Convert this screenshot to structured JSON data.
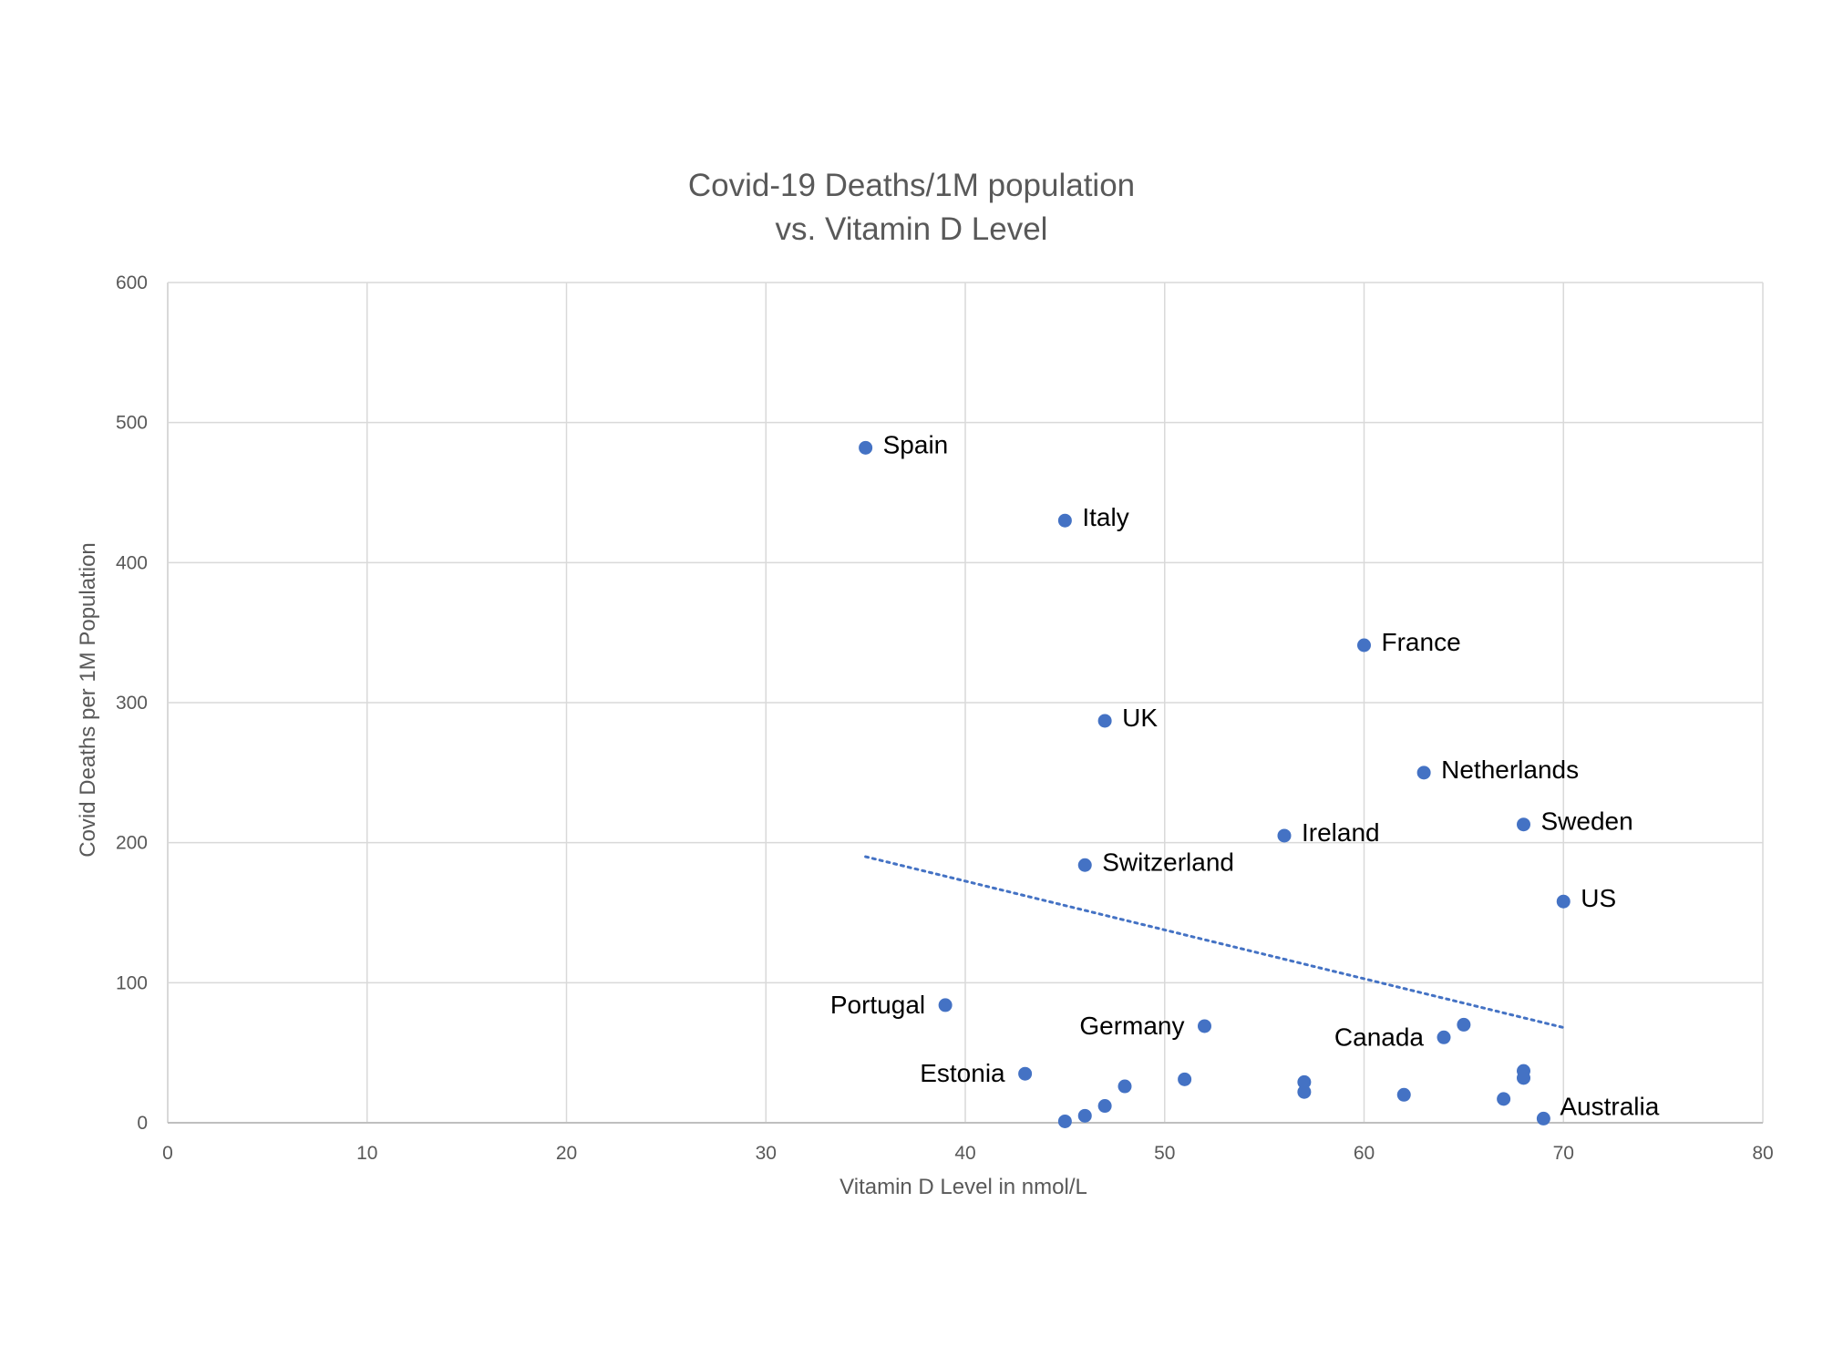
{
  "chart_data": {
    "type": "scatter",
    "title": [
      "Covid-19 Deaths/1M population",
      "vs. Vitamin D Level"
    ],
    "xlabel": "Vitamin D Level in nmol/L",
    "ylabel": "Covid Deaths per 1M Population",
    "xlim": [
      0,
      80
    ],
    "ylim": [
      0,
      600
    ],
    "xticks": [
      0,
      10,
      20,
      30,
      40,
      50,
      60,
      70,
      80
    ],
    "yticks": [
      0,
      100,
      200,
      300,
      400,
      500,
      600
    ],
    "grid": true,
    "marker_color": "#4472C4",
    "trendline": {
      "style": "dotted",
      "color": "#4472C4",
      "x": [
        35,
        70
      ],
      "y": [
        190,
        68
      ]
    },
    "points": [
      {
        "x": 35,
        "y": 482,
        "label": "Spain"
      },
      {
        "x": 45,
        "y": 430,
        "label": "Italy"
      },
      {
        "x": 60,
        "y": 341,
        "label": "France"
      },
      {
        "x": 47,
        "y": 287,
        "label": "UK"
      },
      {
        "x": 63,
        "y": 250,
        "label": "Netherlands"
      },
      {
        "x": 68,
        "y": 213,
        "label": "Sweden"
      },
      {
        "x": 56,
        "y": 205,
        "label": "Ireland"
      },
      {
        "x": 46,
        "y": 184,
        "label": "Switzerland"
      },
      {
        "x": 70,
        "y": 158,
        "label": "US"
      },
      {
        "x": 39,
        "y": 84,
        "label": "Portugal"
      },
      {
        "x": 52,
        "y": 69,
        "label": "Germany"
      },
      {
        "x": 64,
        "y": 61,
        "label": "Canada"
      },
      {
        "x": 43,
        "y": 35,
        "label": "Estonia"
      },
      {
        "x": 69,
        "y": 3,
        "label": "Australia"
      },
      {
        "x": 65,
        "y": 70,
        "label": ""
      },
      {
        "x": 68,
        "y": 37,
        "label": ""
      },
      {
        "x": 68,
        "y": 32,
        "label": ""
      },
      {
        "x": 51,
        "y": 31,
        "label": ""
      },
      {
        "x": 57,
        "y": 29,
        "label": ""
      },
      {
        "x": 57,
        "y": 22,
        "label": ""
      },
      {
        "x": 48,
        "y": 26,
        "label": ""
      },
      {
        "x": 62,
        "y": 20,
        "label": ""
      },
      {
        "x": 67,
        "y": 17,
        "label": ""
      },
      {
        "x": 47,
        "y": 12,
        "label": ""
      },
      {
        "x": 46,
        "y": 5,
        "label": ""
      },
      {
        "x": 45,
        "y": 1,
        "label": ""
      }
    ]
  }
}
